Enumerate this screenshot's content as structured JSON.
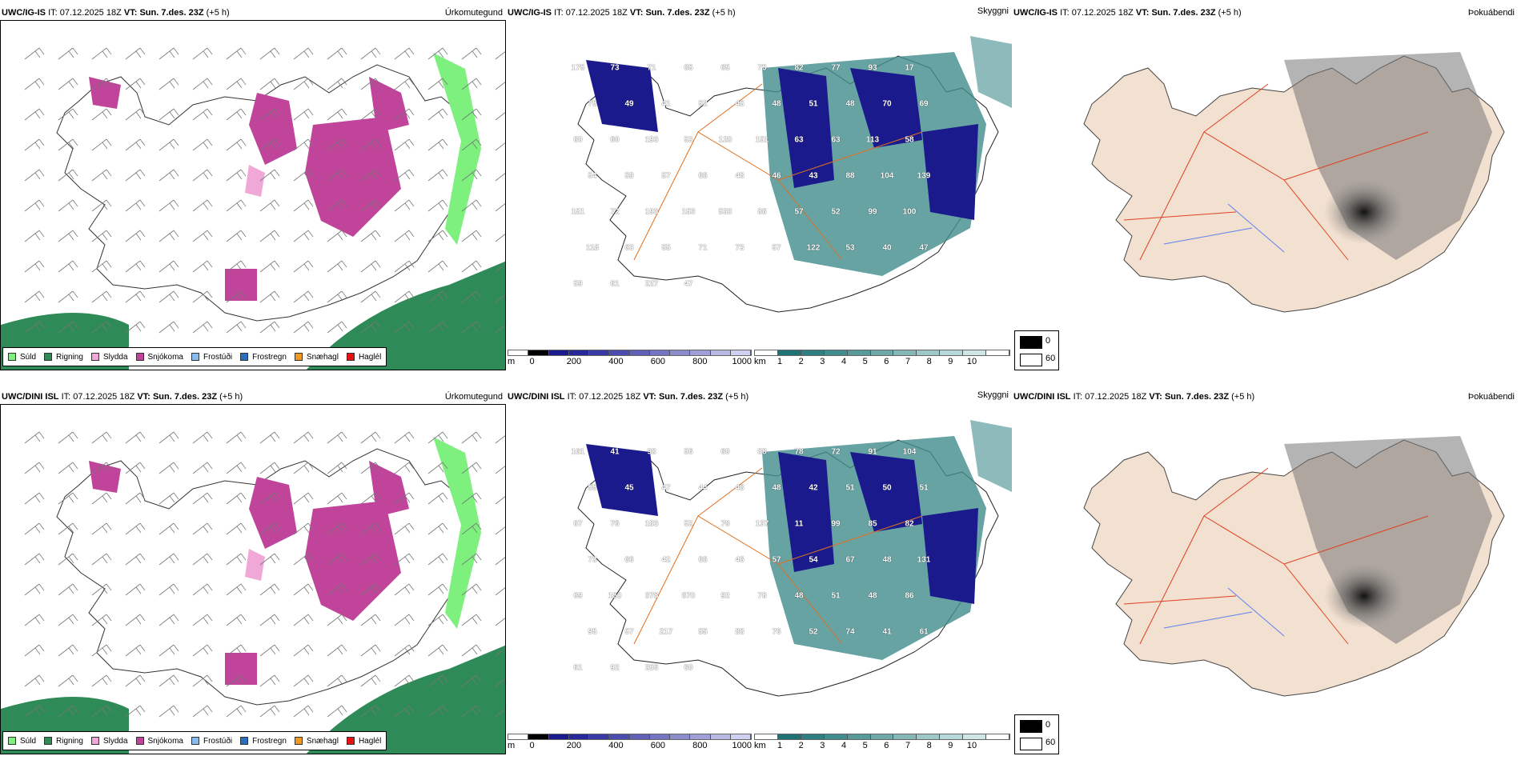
{
  "rows": [
    {
      "model": "UWC/IG-IS",
      "it_label": "IT:",
      "it_value": "07.12.2025 18Z",
      "vt_label": "VT:",
      "vt_value": "Sun. 7.des. 23Z",
      "lead": "(+5 h)",
      "cloud_labels": [
        "175",
        "73",
        "71",
        "65",
        "65",
        "75",
        "82",
        "77",
        "93",
        "17",
        "75",
        "49",
        "41",
        "52",
        "45",
        "48",
        "51",
        "48",
        "70",
        "69",
        "60",
        "60",
        "193",
        "53",
        "120",
        "151",
        "63",
        "63",
        "113",
        "58",
        "54",
        "59",
        "57",
        "66",
        "48",
        "46",
        "43",
        "88",
        "104",
        "139",
        "151",
        "72",
        "193",
        "153",
        "533",
        "86",
        "57",
        "52",
        "99",
        "100",
        "118",
        "63",
        "55",
        "71",
        "73",
        "57",
        "122",
        "53",
        "40",
        "47",
        "59",
        "61",
        "227",
        "47"
      ]
    },
    {
      "model": "UWC/DINI ISL",
      "it_label": "IT:",
      "it_value": "07.12.2025 18Z",
      "vt_label": "VT:",
      "vt_value": "Sun. 7.des. 23Z",
      "lead": "(+5 h)",
      "cloud_labels": [
        "161",
        "41",
        "98",
        "56",
        "60",
        "88",
        "78",
        "72",
        "91",
        "104",
        "55",
        "45",
        "47",
        "44",
        "48",
        "48",
        "42",
        "51",
        "50",
        "51",
        "67",
        "76",
        "183",
        "52",
        "78",
        "137",
        "11",
        "99",
        "85",
        "82",
        "73",
        "66",
        "42",
        "66",
        "46",
        "57",
        "54",
        "67",
        "48",
        "131",
        "69",
        "150",
        "378",
        "670",
        "92",
        "78",
        "48",
        "51",
        "48",
        "86",
        "95",
        "57",
        "217",
        "55",
        "88",
        "76",
        "52",
        "74",
        "41",
        "61",
        "61",
        "92",
        "256",
        "60"
      ]
    }
  ],
  "panels": {
    "precip": {
      "title": "Úrkomutegund",
      "legend": [
        {
          "label": "Súld",
          "color": "#7ef07e"
        },
        {
          "label": "Rigning",
          "color": "#2e8b57"
        },
        {
          "label": "Slydda",
          "color": "#f0a8d8"
        },
        {
          "label": "Snjókoma",
          "color": "#c0449a"
        },
        {
          "label": "Frostúði",
          "color": "#88bbf0"
        },
        {
          "label": "Frostregn",
          "color": "#2a6ebf"
        },
        {
          "label": "Snæhagl",
          "color": "#f09820"
        },
        {
          "label": "Haglél",
          "color": "#e81010"
        }
      ]
    },
    "cloud": {
      "title": "Skyggni",
      "height_unit": "m",
      "height_ticks": [
        "0",
        "200",
        "400",
        "600",
        "800",
        "1000"
      ],
      "height_colors": [
        "#000000",
        "#1a1a8c",
        "#28289a",
        "#3a3aa6",
        "#4c4cb0",
        "#6060b8",
        "#7474c2",
        "#8a8acc",
        "#a0a0d6",
        "#b8b8e0",
        "#d0d0f0"
      ],
      "vis_unit": "km",
      "vis_ticks": [
        "1",
        "2",
        "3",
        "4",
        "5",
        "6",
        "7",
        "8",
        "9",
        "10"
      ],
      "vis_colors": [
        "#1e7474",
        "#2e8080",
        "#418c8c",
        "#579a9a",
        "#6ea8a8",
        "#86b8b8",
        "#9ec8c8",
        "#b6d8d8",
        "#cee6e6",
        "#ffffff"
      ]
    },
    "fog": {
      "title": "Þokuábendi",
      "legend": [
        {
          "label": "0",
          "color": "#000000"
        },
        {
          "label": "60",
          "color": "#ffffff"
        }
      ]
    }
  }
}
